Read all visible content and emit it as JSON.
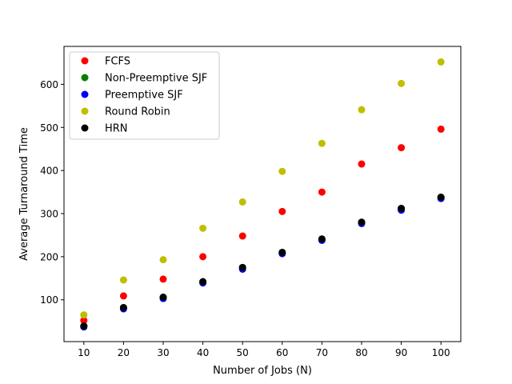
{
  "chart_data": {
    "type": "scatter",
    "title": "",
    "xlabel": "Number of Jobs (N)",
    "ylabel": "Average Turnaround Time",
    "x": [
      10,
      20,
      30,
      40,
      50,
      60,
      70,
      80,
      90,
      100
    ],
    "xlim": [
      5,
      105
    ],
    "ylim": [
      3,
      688
    ],
    "xticks": [
      10,
      20,
      30,
      40,
      50,
      60,
      70,
      80,
      90,
      100
    ],
    "yticks": [
      100,
      200,
      300,
      400,
      500,
      600
    ],
    "grid": false,
    "legend_position": "upper-left",
    "series": [
      {
        "name": "FCFS",
        "color": "#ff0000",
        "values": [
          52,
          109,
          148,
          200,
          248,
          305,
          350,
          415,
          453,
          496
        ]
      },
      {
        "name": "Non-Preemptive SJF",
        "color": "#008000",
        "values": [
          39,
          82,
          106,
          142,
          175,
          210,
          241,
          280,
          312,
          338
        ]
      },
      {
        "name": "Preemptive SJF",
        "color": "#0000ff",
        "values": [
          37,
          79,
          103,
          139,
          171,
          207,
          238,
          277,
          308,
          335
        ]
      },
      {
        "name": "Round Robin",
        "color": "#bfbf00",
        "values": [
          65,
          146,
          193,
          266,
          327,
          398,
          463,
          541,
          602,
          652
        ]
      },
      {
        "name": "HRN",
        "color": "#000000",
        "values": [
          39,
          82,
          106,
          142,
          175,
          210,
          241,
          280,
          312,
          338
        ]
      }
    ]
  }
}
